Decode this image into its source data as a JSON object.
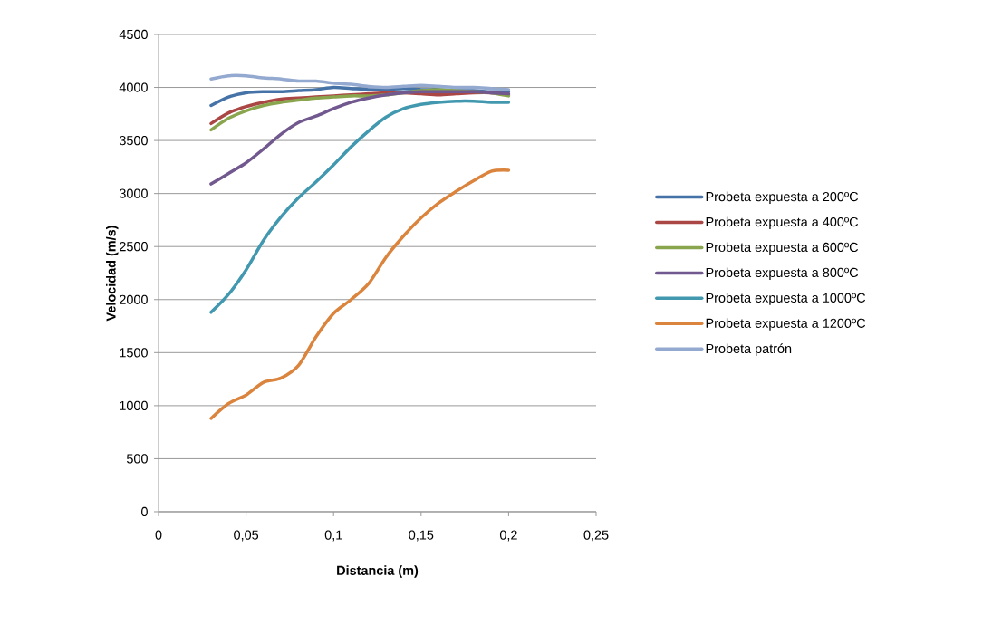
{
  "chart_data": {
    "type": "line",
    "xlabel": "Distancia (m)",
    "ylabel": "Velocidad (m/s)",
    "x": [
      0.03,
      0.04,
      0.05,
      0.06,
      0.07,
      0.08,
      0.09,
      0.1,
      0.11,
      0.12,
      0.13,
      0.14,
      0.15,
      0.16,
      0.17,
      0.18,
      0.19,
      0.2
    ],
    "series": [
      {
        "name": "Probeta expuesta a 200ºC",
        "color": "#4572a7",
        "values": [
          3830,
          3910,
          3950,
          3960,
          3960,
          3970,
          3980,
          4000,
          3990,
          3980,
          3980,
          3990,
          3980,
          3980,
          3970,
          3970,
          3960,
          3960
        ]
      },
      {
        "name": "Probeta expuesta a 400ºC",
        "color": "#aa4643",
        "values": [
          3660,
          3760,
          3820,
          3860,
          3890,
          3900,
          3910,
          3920,
          3930,
          3940,
          3950,
          3950,
          3940,
          3930,
          3940,
          3950,
          3950,
          3930
        ]
      },
      {
        "name": "Probeta expuesta a 600ºC",
        "color": "#89a54e",
        "values": [
          3600,
          3710,
          3780,
          3830,
          3860,
          3880,
          3900,
          3910,
          3920,
          3920,
          3930,
          3950,
          3970,
          3980,
          3970,
          3960,
          3950,
          3920
        ]
      },
      {
        "name": "Probeta expuesta a 800ºC",
        "color": "#71588f",
        "values": [
          3090,
          3190,
          3290,
          3420,
          3560,
          3670,
          3730,
          3800,
          3860,
          3900,
          3930,
          3950,
          3960,
          3960,
          3960,
          3960,
          3950,
          3940
        ]
      },
      {
        "name": "Probeta expuesta a 1000ºC",
        "color": "#4198af",
        "values": [
          1880,
          2050,
          2280,
          2560,
          2780,
          2960,
          3110,
          3270,
          3440,
          3590,
          3720,
          3800,
          3840,
          3860,
          3870,
          3870,
          3860,
          3860
        ]
      },
      {
        "name": "Probeta expuesta a 1200ºC",
        "color": "#db843d",
        "values": [
          880,
          1020,
          1100,
          1220,
          1260,
          1380,
          1650,
          1870,
          2000,
          2150,
          2400,
          2600,
          2770,
          2910,
          3020,
          3120,
          3210,
          3220
        ]
      },
      {
        "name": "Probeta patrón",
        "color": "#93a9cf",
        "values": [
          4080,
          4110,
          4110,
          4090,
          4080,
          4060,
          4060,
          4040,
          4030,
          4010,
          4000,
          4010,
          4020,
          4010,
          4000,
          4000,
          3990,
          3980
        ]
      }
    ],
    "xlim": [
      0,
      0.25
    ],
    "xticks": [
      0,
      {
        "value": 0.05,
        "label": "0,05"
      },
      {
        "value": 0.1,
        "label": "0,1"
      },
      {
        "value": 0.15,
        "label": "0,15"
      },
      {
        "value": 0.2,
        "label": "0,2"
      },
      {
        "value": 0.25,
        "label": "0,25"
      }
    ],
    "ylim": [
      0,
      4500
    ],
    "yticks": [
      0,
      500,
      1000,
      1500,
      2000,
      2500,
      3000,
      3500,
      4000,
      4500
    ],
    "grid": "y",
    "legend": "right",
    "marker": "none",
    "line_style": "solid"
  }
}
